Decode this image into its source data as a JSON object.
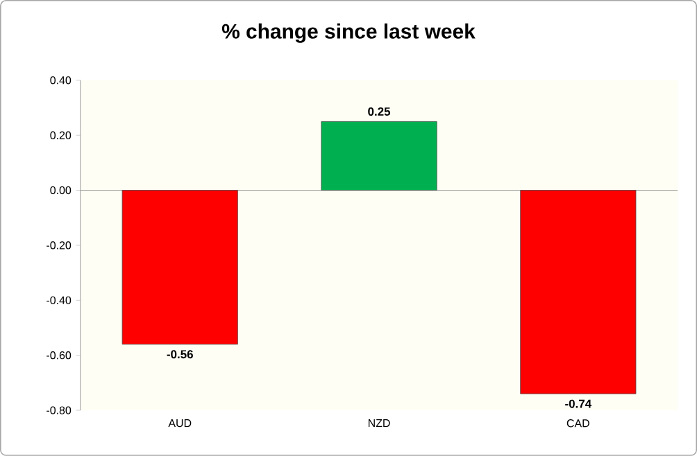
{
  "chart_data": {
    "type": "bar",
    "title": "% change since last week",
    "categories": [
      "AUD",
      "NZD",
      "CAD"
    ],
    "values": [
      -0.56,
      0.25,
      -0.74
    ],
    "colors": [
      "#ff0000",
      "#00b050",
      "#ff0000"
    ],
    "ylim": [
      -0.8,
      0.4
    ],
    "yticks": [
      {
        "value": -0.8,
        "label": "-0.80"
      },
      {
        "value": -0.6,
        "label": "-0.60"
      },
      {
        "value": -0.4,
        "label": "-0.40"
      },
      {
        "value": -0.2,
        "label": "-0.20"
      },
      {
        "value": 0,
        "label": "0.00"
      },
      {
        "value": 0.2,
        "label": "0.20"
      },
      {
        "value": 0.4,
        "label": "0.40"
      }
    ],
    "data_labels": true
  }
}
